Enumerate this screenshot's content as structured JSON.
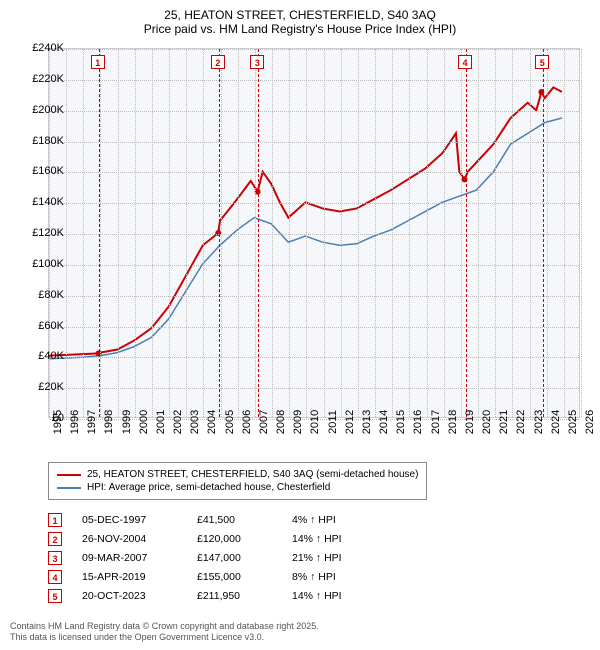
{
  "title": "25, HEATON STREET, CHESTERFIELD, S40 3AQ",
  "subtitle": "Price paid vs. HM Land Registry's House Price Index (HPI)",
  "chart": {
    "type": "line",
    "background_color": "#f5f7fa",
    "grid_color": "#bbbbbb",
    "y_axis": {
      "min": 0,
      "max": 240000,
      "tick_step": 20000,
      "ticks": [
        "£0",
        "£20K",
        "£40K",
        "£60K",
        "£80K",
        "£100K",
        "£120K",
        "£140K",
        "£160K",
        "£180K",
        "£200K",
        "£220K",
        "£240K"
      ]
    },
    "x_axis": {
      "min": 1995,
      "max": 2026,
      "ticks": [
        1995,
        1996,
        1997,
        1998,
        1999,
        2000,
        2001,
        2002,
        2003,
        2004,
        2005,
        2006,
        2007,
        2008,
        2009,
        2010,
        2011,
        2012,
        2013,
        2014,
        2015,
        2016,
        2017,
        2018,
        2019,
        2020,
        2021,
        2022,
        2023,
        2024,
        2025,
        2026
      ]
    },
    "series": [
      {
        "name": "price_paid",
        "label": "25, HEATON STREET, CHESTERFIELD, S40 3AQ (semi-detached house)",
        "color": "#cc0000",
        "width": 2,
        "points": [
          [
            1995,
            40000
          ],
          [
            1996,
            40500
          ],
          [
            1997,
            41000
          ],
          [
            1997.9,
            41500
          ],
          [
            1998,
            42000
          ],
          [
            1999,
            44000
          ],
          [
            2000,
            50000
          ],
          [
            2001,
            58000
          ],
          [
            2002,
            72000
          ],
          [
            2003,
            92000
          ],
          [
            2004,
            112000
          ],
          [
            2004.9,
            120000
          ],
          [
            2005,
            128000
          ],
          [
            2006,
            142000
          ],
          [
            2006.8,
            154000
          ],
          [
            2007.2,
            147000
          ],
          [
            2007.5,
            160000
          ],
          [
            2008,
            152000
          ],
          [
            2008.5,
            140000
          ],
          [
            2009,
            130000
          ],
          [
            2009.5,
            135000
          ],
          [
            2010,
            140000
          ],
          [
            2011,
            136000
          ],
          [
            2012,
            134000
          ],
          [
            2013,
            136000
          ],
          [
            2014,
            142000
          ],
          [
            2015,
            148000
          ],
          [
            2016,
            155000
          ],
          [
            2017,
            162000
          ],
          [
            2018,
            172000
          ],
          [
            2018.5,
            180000
          ],
          [
            2018.8,
            185000
          ],
          [
            2019,
            160000
          ],
          [
            2019.3,
            155000
          ],
          [
            2019.5,
            160000
          ],
          [
            2020,
            166000
          ],
          [
            2021,
            178000
          ],
          [
            2022,
            195000
          ],
          [
            2023,
            205000
          ],
          [
            2023.5,
            200000
          ],
          [
            2023.8,
            211950
          ],
          [
            2024,
            208000
          ],
          [
            2024.5,
            215000
          ],
          [
            2025,
            212000
          ]
        ]
      },
      {
        "name": "hpi",
        "label": "HPI: Average price, semi-detached house, Chesterfield",
        "color": "#4a7fb5",
        "width": 1.5,
        "points": [
          [
            1995,
            38000
          ],
          [
            1996,
            38500
          ],
          [
            1997,
            39000
          ],
          [
            1998,
            40000
          ],
          [
            1999,
            42000
          ],
          [
            2000,
            46000
          ],
          [
            2001,
            52000
          ],
          [
            2002,
            64000
          ],
          [
            2003,
            82000
          ],
          [
            2004,
            100000
          ],
          [
            2005,
            112000
          ],
          [
            2006,
            122000
          ],
          [
            2007,
            130000
          ],
          [
            2008,
            126000
          ],
          [
            2009,
            114000
          ],
          [
            2010,
            118000
          ],
          [
            2011,
            114000
          ],
          [
            2012,
            112000
          ],
          [
            2013,
            113000
          ],
          [
            2014,
            118000
          ],
          [
            2015,
            122000
          ],
          [
            2016,
            128000
          ],
          [
            2017,
            134000
          ],
          [
            2018,
            140000
          ],
          [
            2019,
            144000
          ],
          [
            2020,
            148000
          ],
          [
            2021,
            160000
          ],
          [
            2022,
            178000
          ],
          [
            2023,
            185000
          ],
          [
            2024,
            192000
          ],
          [
            2025,
            195000
          ]
        ]
      }
    ],
    "events": [
      {
        "n": 1,
        "year": 1997.9,
        "date": "05-DEC-1997",
        "price": "£41,500",
        "pct": "4% ↑ HPI"
      },
      {
        "n": 2,
        "year": 2004.9,
        "date": "26-NOV-2004",
        "price": "£120,000",
        "pct": "14% ↑ HPI"
      },
      {
        "n": 3,
        "year": 2007.2,
        "date": "09-MAR-2007",
        "price": "£147,000",
        "pct": "21% ↑ HPI"
      },
      {
        "n": 4,
        "year": 2019.3,
        "date": "15-APR-2019",
        "price": "£155,000",
        "pct": "8% ↑ HPI"
      },
      {
        "n": 5,
        "year": 2023.8,
        "date": "20-OCT-2023",
        "price": "£211,950",
        "pct": "14% ↑ HPI"
      }
    ]
  },
  "legend": {
    "row1_color": "#cc0000",
    "row2_color": "#4a7fb5"
  },
  "footer_line1": "Contains HM Land Registry data © Crown copyright and database right 2025.",
  "footer_line2": "This data is licensed under the Open Government Licence v3.0."
}
